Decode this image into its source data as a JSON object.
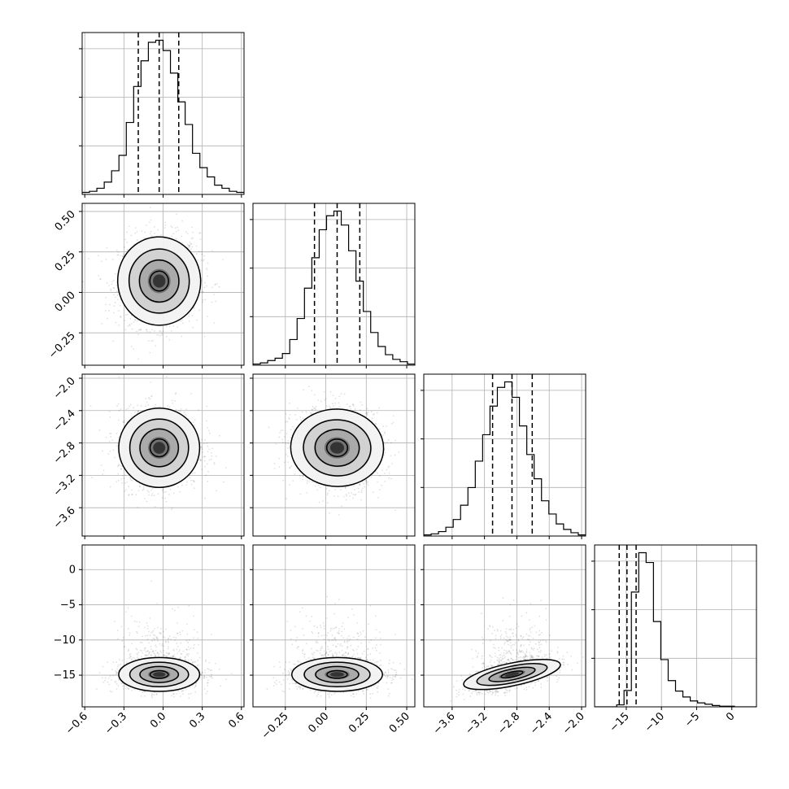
{
  "chart_data": {
    "type": "corner",
    "title": "",
    "parameters": [
      {
        "range": [
          -0.62,
          0.62
        ],
        "ticks": [
          "−0.6",
          "−0.3",
          "0.0",
          "0.3",
          "0.6"
        ],
        "tick_values": [
          -0.6,
          -0.3,
          0.0,
          0.3,
          0.6
        ],
        "quantiles": [
          -0.19,
          -0.03,
          0.12
        ]
      },
      {
        "range": [
          -0.45,
          0.55
        ],
        "ticks": [
          "−0.25",
          "0.00",
          "0.25",
          "0.50"
        ],
        "tick_values": [
          -0.25,
          0.0,
          0.25,
          0.5
        ],
        "quantiles": [
          -0.07,
          0.07,
          0.21
        ]
      },
      {
        "range": [
          -3.95,
          -1.95
        ],
        "ticks": [
          "−3.6",
          "−3.2",
          "−2.8",
          "−2.4",
          "−2.0"
        ],
        "tick_values": [
          -3.6,
          -3.2,
          -2.8,
          -2.4,
          -2.0
        ],
        "quantiles": [
          -3.1,
          -2.86,
          -2.61
        ]
      },
      {
        "range": [
          -19.5,
          3.5
        ],
        "ticks": [
          "−15",
          "−10",
          "−5",
          "0"
        ],
        "tick_values": [
          -15,
          -10,
          -5,
          0
        ],
        "ticks_y": [
          "0",
          "−5",
          "−10",
          "−15"
        ],
        "ticks_y_values": [
          0,
          -5,
          -10,
          -15
        ],
        "quantiles": [
          -16.0,
          -14.9,
          -13.6
        ]
      }
    ],
    "histograms": [
      [
        2,
        3,
        6,
        12,
        23,
        38,
        70,
        105,
        130,
        148,
        150,
        140,
        118,
        90,
        68,
        40,
        26,
        17,
        9,
        6,
        3,
        2
      ],
      [
        1,
        2,
        4,
        6,
        10,
        22,
        40,
        66,
        92,
        116,
        128,
        132,
        120,
        98,
        72,
        46,
        28,
        16,
        9,
        5,
        3,
        1
      ],
      [
        1,
        2,
        4,
        8,
        15,
        28,
        44,
        68,
        92,
        118,
        135,
        140,
        126,
        100,
        74,
        52,
        32,
        20,
        11,
        6,
        3,
        1
      ],
      [
        0,
        0,
        0,
        3,
        25,
        175,
        235,
        220,
        130,
        72,
        40,
        24,
        15,
        9,
        6,
        4,
        2,
        1,
        1,
        0,
        0,
        0
      ]
    ],
    "correlations": {
      "1_0": 0.05,
      "2_0": 0.0,
      "2_1": -0.05,
      "3_0": 0.0,
      "3_1": 0.0,
      "3_2": 0.55
    },
    "grid": true
  }
}
